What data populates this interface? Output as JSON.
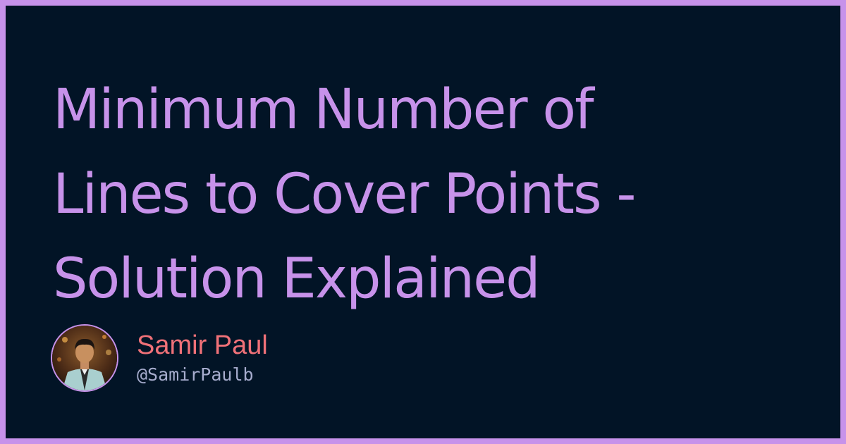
{
  "post": {
    "title_lines": [
      "Minimum Number of",
      "Lines to Cover Points -",
      "Solution Explained"
    ]
  },
  "author": {
    "name": "Samir Paul",
    "handle": "@SamirPaulb",
    "avatar_icon": "person-avatar-icon"
  },
  "colors": {
    "frame": "#c792ea",
    "background": "#021426",
    "title": "#c792ea",
    "author_name": "#f07178",
    "author_handle": "#a6accd"
  }
}
